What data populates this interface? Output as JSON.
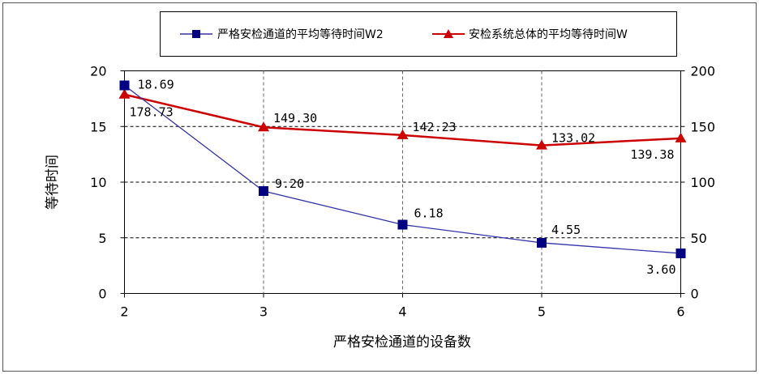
{
  "chart_data": {
    "type": "line",
    "x": [
      2,
      3,
      4,
      5,
      6
    ],
    "xlabel": "严格安检通道的设备数",
    "ylabel_left": "等待时间",
    "ylim_left": [
      0,
      20
    ],
    "ylim_right": [
      0,
      200
    ],
    "yticks_left": [
      0,
      5,
      10,
      15,
      20
    ],
    "yticks_right": [
      0,
      50,
      100,
      150,
      200
    ],
    "xticks": [
      2,
      3,
      4,
      5,
      6
    ],
    "grid": true,
    "legend_position": "top",
    "series": [
      {
        "name": "严格安检通道的平均等待时间W2",
        "axis": "left",
        "marker": "square",
        "color": "#3333aa",
        "marker_color": "#000080",
        "values": [
          18.69,
          9.2,
          6.18,
          4.55,
          3.6
        ],
        "labels": [
          "18.69",
          "9.20",
          "6.18",
          "4.55",
          "3.60"
        ]
      },
      {
        "name": "安检系统总体的平均等待时间W",
        "axis": "right",
        "marker": "triangle",
        "color": "#cc0000",
        "marker_color": "#cc0000",
        "values": [
          178.73,
          149.3,
          142.23,
          133.02,
          139.38
        ],
        "labels": [
          "178.73",
          "149.30",
          "142.23",
          "133.02",
          "139.38"
        ]
      }
    ]
  }
}
